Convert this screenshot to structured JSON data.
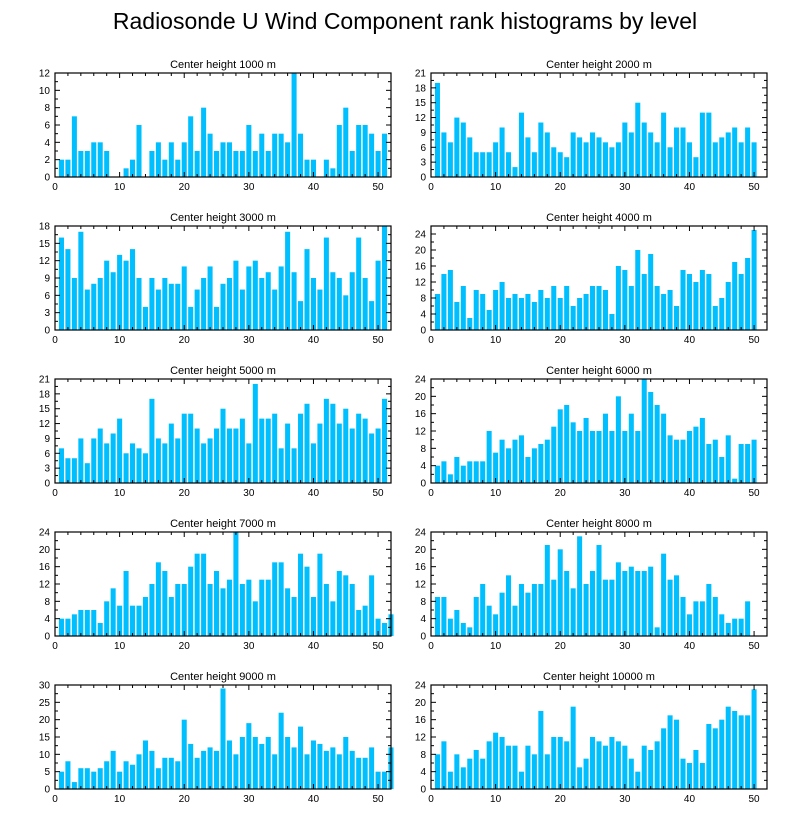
{
  "title": "Radiosonde U Wind Component rank histograms by level",
  "colors": {
    "bar": "#00BFFF",
    "axis": "#000000"
  },
  "chart_data": [
    {
      "type": "bar",
      "title": "Center height 1000 m",
      "xlim": [
        0,
        52
      ],
      "ylim": [
        0,
        12
      ],
      "xticks": [
        0,
        10,
        20,
        30,
        40,
        50
      ],
      "yticks": [
        0,
        2,
        4,
        6,
        8,
        10,
        12
      ],
      "values": [
        2,
        2,
        7,
        3,
        3,
        4,
        4,
        3,
        0,
        0,
        1,
        2,
        6,
        0,
        3,
        4,
        2,
        4,
        2,
        4,
        7,
        3,
        8,
        5,
        3,
        4,
        4,
        3,
        3,
        6,
        3,
        5,
        3,
        5,
        5,
        4,
        12,
        5,
        2,
        2,
        0,
        2,
        1,
        6,
        8,
        3,
        6,
        6,
        5,
        3,
        5
      ]
    },
    {
      "type": "bar",
      "title": "Center height 2000 m",
      "xlim": [
        0,
        52
      ],
      "ylim": [
        0,
        21
      ],
      "xticks": [
        0,
        10,
        20,
        30,
        40,
        50
      ],
      "yticks": [
        0,
        3,
        6,
        9,
        12,
        15,
        18,
        21
      ],
      "values": [
        19,
        9,
        7,
        12,
        11,
        8,
        5,
        5,
        5,
        7,
        10,
        5,
        2,
        13,
        8,
        5,
        11,
        9,
        6,
        5,
        4,
        9,
        8,
        7,
        9,
        8,
        7,
        6,
        7,
        11,
        9,
        15,
        11,
        9,
        7,
        13,
        6,
        10,
        10,
        7,
        4,
        13,
        13,
        7,
        8,
        9,
        10,
        7,
        10,
        7
      ]
    },
    {
      "type": "bar",
      "title": "Center height 3000 m",
      "xlim": [
        0,
        52
      ],
      "ylim": [
        0,
        18
      ],
      "xticks": [
        0,
        10,
        20,
        30,
        40,
        50
      ],
      "yticks": [
        0,
        3,
        6,
        9,
        12,
        15,
        18
      ],
      "values": [
        16,
        14,
        9,
        17,
        7,
        8,
        9,
        12,
        10,
        13,
        12,
        14,
        9,
        4,
        9,
        7,
        9,
        8,
        8,
        11,
        4,
        7,
        9,
        11,
        4,
        8,
        9,
        12,
        7,
        11,
        12,
        9,
        10,
        7,
        11,
        17,
        10,
        5,
        14,
        9,
        7,
        16,
        10,
        9,
        6,
        10,
        16,
        9,
        5,
        12,
        18
      ]
    },
    {
      "type": "bar",
      "title": "Center height 4000 m",
      "xlim": [
        0,
        52
      ],
      "ylim": [
        0,
        26
      ],
      "xticks": [
        0,
        10,
        20,
        30,
        40,
        50
      ],
      "yticks": [
        0,
        4,
        8,
        12,
        16,
        20,
        24
      ],
      "values": [
        9,
        14,
        15,
        7,
        11,
        3,
        10,
        9,
        5,
        10,
        12,
        8,
        9,
        8,
        9,
        7,
        10,
        8,
        11,
        8,
        11,
        6,
        8,
        9,
        11,
        11,
        10,
        4,
        16,
        15,
        11,
        20,
        14,
        19,
        11,
        9,
        10,
        6,
        15,
        14,
        12,
        15,
        14,
        6,
        8,
        12,
        17,
        14,
        18,
        25
      ]
    },
    {
      "type": "bar",
      "title": "Center height 5000 m",
      "xlim": [
        0,
        52
      ],
      "ylim": [
        0,
        21
      ],
      "xticks": [
        0,
        10,
        20,
        30,
        40,
        50
      ],
      "yticks": [
        0,
        3,
        6,
        9,
        12,
        15,
        18,
        21
      ],
      "values": [
        7,
        5,
        5,
        9,
        4,
        9,
        11,
        8,
        10,
        13,
        6,
        8,
        7,
        6,
        17,
        9,
        8,
        12,
        9,
        14,
        14,
        11,
        8,
        9,
        11,
        15,
        11,
        11,
        13,
        8,
        20,
        13,
        13,
        14,
        7,
        12,
        7,
        14,
        16,
        8,
        12,
        17,
        16,
        12,
        15,
        11,
        14,
        13,
        10,
        11,
        17
      ]
    },
    {
      "type": "bar",
      "title": "Center height 6000 m",
      "xlim": [
        0,
        52
      ],
      "ylim": [
        0,
        24
      ],
      "xticks": [
        0,
        10,
        20,
        30,
        40,
        50
      ],
      "yticks": [
        0,
        4,
        8,
        12,
        16,
        20,
        24
      ],
      "values": [
        4,
        5,
        2,
        6,
        4,
        5,
        5,
        5,
        12,
        7,
        10,
        8,
        10,
        11,
        6,
        8,
        9,
        10,
        13,
        17,
        18,
        14,
        12,
        15,
        12,
        12,
        16,
        12,
        20,
        12,
        16,
        12,
        24,
        21,
        18,
        16,
        11,
        10,
        10,
        12,
        13,
        15,
        9,
        10,
        6,
        11,
        1,
        9,
        9,
        10
      ]
    },
    {
      "type": "bar",
      "title": "Center height 7000 m",
      "xlim": [
        0,
        52
      ],
      "ylim": [
        0,
        24
      ],
      "xticks": [
        0,
        10,
        20,
        30,
        40,
        50
      ],
      "yticks": [
        0,
        4,
        8,
        12,
        16,
        20,
        24
      ],
      "values": [
        4,
        4,
        5,
        6,
        6,
        6,
        3,
        8,
        11,
        7,
        15,
        7,
        7,
        9,
        12,
        17,
        15,
        9,
        12,
        12,
        16,
        19,
        19,
        12,
        15,
        11,
        13,
        24,
        12,
        13,
        8,
        13,
        13,
        17,
        17,
        11,
        9,
        19,
        16,
        9,
        19,
        12,
        8,
        15,
        14,
        12,
        6,
        7,
        14,
        4,
        3,
        5
      ]
    },
    {
      "type": "bar",
      "title": "Center height 8000 m",
      "xlim": [
        0,
        52
      ],
      "ylim": [
        0,
        24
      ],
      "xticks": [
        0,
        10,
        20,
        30,
        40,
        50
      ],
      "yticks": [
        0,
        4,
        8,
        12,
        16,
        20,
        24
      ],
      "values": [
        9,
        9,
        4,
        6,
        3,
        2,
        9,
        12,
        7,
        5,
        10,
        14,
        7,
        12,
        10,
        12,
        12,
        21,
        13,
        20,
        15,
        11,
        23,
        12,
        15,
        21,
        13,
        13,
        17,
        15,
        16,
        15,
        15,
        16,
        2,
        19,
        13,
        14,
        9,
        5,
        8,
        8,
        12,
        9,
        5,
        3,
        4,
        4,
        8
      ]
    },
    {
      "type": "bar",
      "title": "Center height 9000 m",
      "xlim": [
        0,
        52
      ],
      "ylim": [
        0,
        30
      ],
      "xticks": [
        0,
        10,
        20,
        30,
        40,
        50
      ],
      "yticks": [
        0,
        5,
        10,
        15,
        20,
        25,
        30
      ],
      "values": [
        5,
        8,
        2,
        6,
        6,
        5,
        6,
        8,
        11,
        5,
        8,
        7,
        10,
        14,
        11,
        6,
        9,
        9,
        8,
        20,
        13,
        9,
        11,
        12,
        11,
        29,
        14,
        10,
        15,
        19,
        15,
        13,
        15,
        10,
        22,
        15,
        12,
        18,
        10,
        14,
        13,
        11,
        12,
        10,
        15,
        11,
        9,
        9,
        12,
        5,
        5,
        12
      ]
    },
    {
      "type": "bar",
      "title": "Center height 10000 m",
      "xlim": [
        0,
        52
      ],
      "ylim": [
        0,
        24
      ],
      "xticks": [
        0,
        10,
        20,
        30,
        40,
        50
      ],
      "yticks": [
        0,
        4,
        8,
        12,
        16,
        20,
        24
      ],
      "values": [
        8,
        11,
        4,
        8,
        5,
        7,
        9,
        7,
        11,
        13,
        12,
        10,
        10,
        4,
        10,
        8,
        18,
        8,
        12,
        12,
        11,
        19,
        5,
        7,
        12,
        11,
        10,
        12,
        11,
        10,
        7,
        4,
        10,
        9,
        11,
        14,
        17,
        16,
        7,
        6,
        9,
        6,
        15,
        14,
        16,
        19,
        18,
        17,
        17,
        23
      ]
    }
  ]
}
